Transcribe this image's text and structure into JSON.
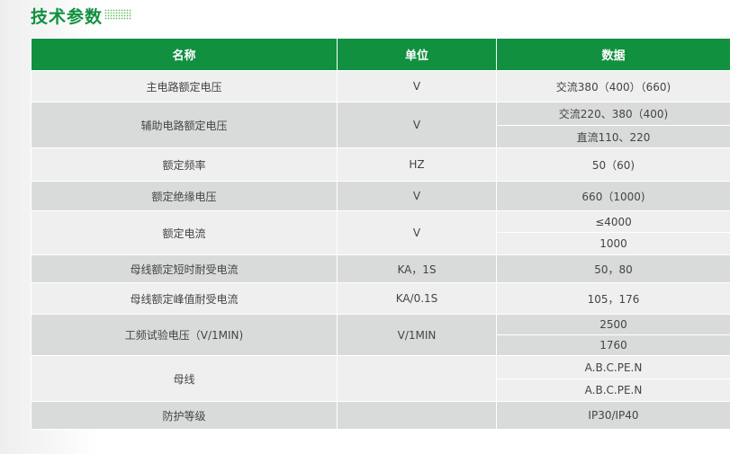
{
  "title": "技术参数",
  "colors": {
    "accent": "#119040",
    "row_light": "#efefef",
    "row_dark": "#d9dbda"
  },
  "table": {
    "headers": [
      "名称",
      "单位",
      "数据"
    ],
    "rows": [
      {
        "name": "主电路额定电压",
        "unit": "V",
        "values": [
          "交流380（400）（660)"
        ]
      },
      {
        "name": "辅助电路额定电压",
        "unit": "V",
        "values": [
          "交流220、380（400)",
          "直流110、220"
        ]
      },
      {
        "name": "额定频率",
        "unit": "HZ",
        "values": [
          "50（60)"
        ]
      },
      {
        "name": "额定绝缘电压",
        "unit": "V",
        "values": [
          "660（1000)"
        ]
      },
      {
        "name": "额定电流",
        "unit": "V",
        "values": [
          "≤4000",
          "1000"
        ]
      },
      {
        "name": "母线额定短时耐受电流",
        "unit": "KA，1S",
        "values": [
          "50，80"
        ]
      },
      {
        "name": "母线额定峰值耐受电流",
        "unit": "KA/0.1S",
        "values": [
          "105，176"
        ]
      },
      {
        "name": "工频试验电压（V/1MIN)",
        "unit": "V/1MIN",
        "values": [
          "2500",
          "1760"
        ]
      },
      {
        "name": "母线",
        "unit": "",
        "values": [
          "A.B.C.PE.N",
          "A.B.C.PE.N"
        ]
      },
      {
        "name": "防护等级",
        "unit": "",
        "values": [
          "IP30/IP40"
        ]
      }
    ]
  }
}
